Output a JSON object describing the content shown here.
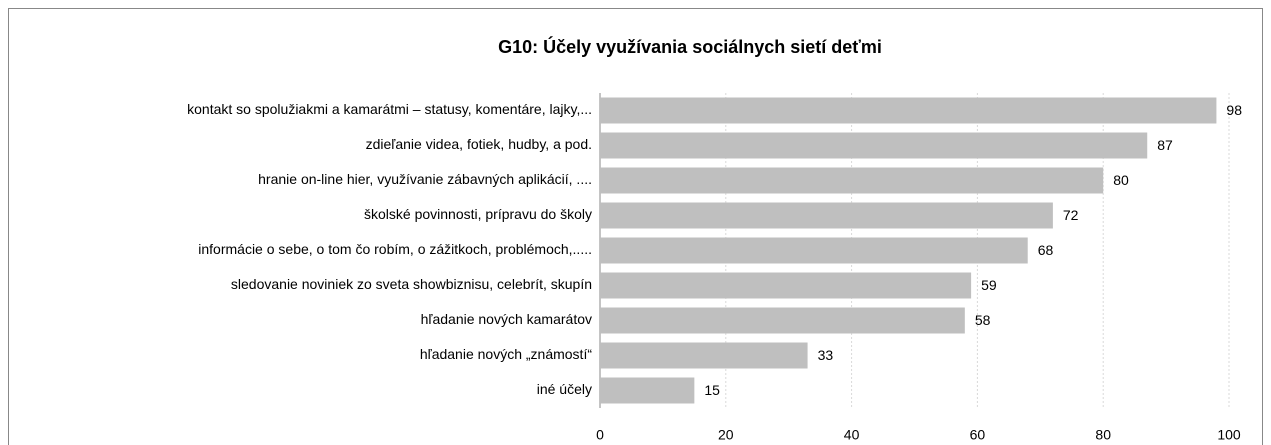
{
  "chart_data": {
    "type": "bar",
    "orientation": "horizontal",
    "title": "G10: Účely využívania sociálnych sietí deťmi",
    "categories": [
      "kontakt so spolužiakmi a kamarátmi – statusy, komentáre, lajky,...",
      "zdieľanie videa, fotiek, hudby, a pod.",
      "hranie on-line hier, využívanie zábavných aplikácií, ....",
      "školské povinnosti, prípravu do školy",
      "informácie o sebe, o tom čo robím, o zážitkoch, problémoch,.....",
      "sledovanie noviniek zo sveta showbiznisu, celebrít, skupín",
      "hľadanie nových kamarátov",
      "hľadanie nových „známostí“",
      "iné účely"
    ],
    "values": [
      98,
      87,
      80,
      72,
      68,
      59,
      58,
      33,
      15
    ],
    "color": "#bfbfbf",
    "xlim": [
      0,
      100
    ],
    "xticks": [
      0,
      20,
      40,
      60,
      80,
      100
    ],
    "grid": true
  }
}
